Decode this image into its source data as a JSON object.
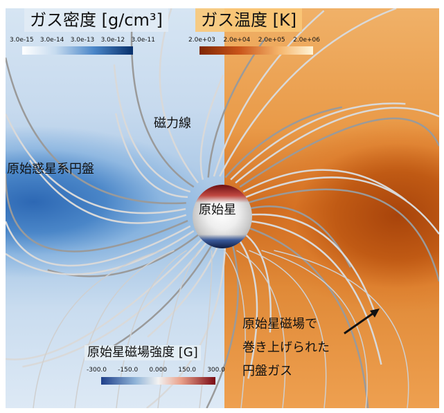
{
  "density": {
    "title": "ガス密度 [g/cm³]",
    "ticks": [
      "3.0e-15",
      "3.0e-14",
      "3.0e-13",
      "3.0e-12",
      "3.0e-11"
    ],
    "colors": [
      "#ffffff",
      "#08306b"
    ]
  },
  "temperature": {
    "title": "ガス温度 [K]",
    "ticks": [
      "2.0e+03",
      "2.0e+04",
      "2.0e+05",
      "2.0e+06"
    ],
    "colors": [
      "#7f2704",
      "#fff5d8"
    ]
  },
  "bfield": {
    "title": "原始星磁場強度 [G]",
    "ticks": [
      "-300.0",
      "-150.0",
      "0.000",
      "150.0",
      "300.0"
    ],
    "colors": [
      "#1f3f8a",
      "#f2f2f2",
      "#7a0a14"
    ]
  },
  "labels": {
    "field_lines": "磁力線",
    "disk": "原始惑星系円盤",
    "protostar": "原始星",
    "annotation": [
      "原始星磁場で",
      "巻き上げられた",
      "円盤ガス"
    ]
  }
}
